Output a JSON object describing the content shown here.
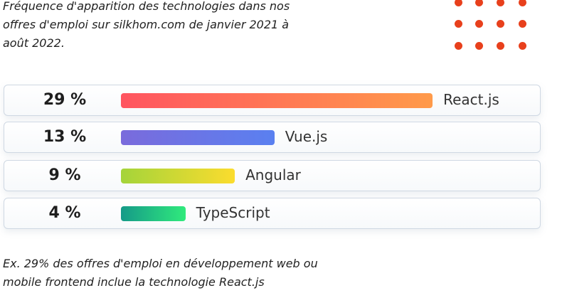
{
  "intro": "Fréquence d'apparition des technologies dans nos offres d'emploi sur silkhom.com de janvier 2021 à août 2022.",
  "footnote": "Ex. 29% des offres d'emploi en développement web ou mobile frontend inclue la technologie React.js",
  "dot_color": "#e8401c",
  "chart_data": {
    "type": "bar",
    "orientation": "horizontal",
    "categories": [
      "React.js",
      "Vue.js",
      "Angular",
      "TypeScript"
    ],
    "values": [
      29,
      13,
      9,
      4
    ],
    "labels": [
      "29 %",
      "13 %",
      "9 %",
      "4 %"
    ],
    "unit": "%",
    "gradients": [
      [
        "#ff5560",
        "#ff9a4a"
      ],
      [
        "#7a6bdc",
        "#5a80f0"
      ],
      [
        "#a4d43a",
        "#fbdc2e"
      ],
      [
        "#159a88",
        "#30ea7c"
      ]
    ]
  }
}
